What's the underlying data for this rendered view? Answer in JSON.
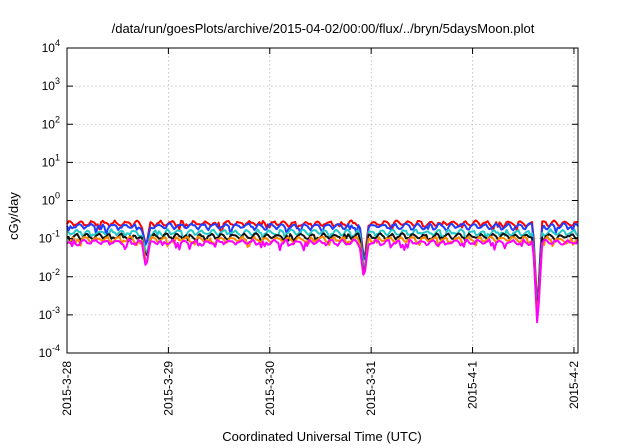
{
  "chart_data": {
    "type": "line",
    "title": "/data/run/goesPlots/archive/2015-04-02/00:00/flux/../bryn/5daysMoon.plot",
    "xlabel": "Coordinated Universal Time (UTC)",
    "ylabel": "cGy/day",
    "yscale": "log",
    "ylim": [
      0.0001,
      10000
    ],
    "xlim": [
      0,
      5.04
    ],
    "grid": true,
    "legend": "none",
    "y_ticks": [
      {
        "base": "10",
        "exp": "-4",
        "value": 0.0001
      },
      {
        "base": "10",
        "exp": "-3",
        "value": 0.001
      },
      {
        "base": "10",
        "exp": "-2",
        "value": 0.01
      },
      {
        "base": "10",
        "exp": "-1",
        "value": 0.1
      },
      {
        "base": "10",
        "exp": "0",
        "value": 1
      },
      {
        "base": "10",
        "exp": "1",
        "value": 10
      },
      {
        "base": "10",
        "exp": "2",
        "value": 100
      },
      {
        "base": "10",
        "exp": "3",
        "value": 1000
      },
      {
        "base": "10",
        "exp": "4",
        "value": 10000
      }
    ],
    "x_ticks": [
      {
        "label": "2015-3-28",
        "day": 0
      },
      {
        "label": "2015-3-29",
        "day": 1
      },
      {
        "label": "2015-3-30",
        "day": 2
      },
      {
        "label": "2015-3-31",
        "day": 3
      },
      {
        "label": "2015-4-1",
        "day": 4
      },
      {
        "label": "2015-4-2",
        "day": 5
      }
    ],
    "series": [
      {
        "color": "#ff0000",
        "level": 0.25
      },
      {
        "color": "#1f3cff",
        "level": 0.21
      },
      {
        "color": "#22c8c8",
        "level": 0.145
      },
      {
        "color": "#111111",
        "level": 0.115
      },
      {
        "color": "#ff8800",
        "level": 0.095
      },
      {
        "color": "#ff00ff",
        "level": 0.08
      }
    ],
    "dips": [
      {
        "day": 0.78,
        "value": 0.025
      },
      {
        "day": 2.93,
        "value": 0.009
      },
      {
        "day": 4.64,
        "value": 0.0006
      }
    ]
  }
}
